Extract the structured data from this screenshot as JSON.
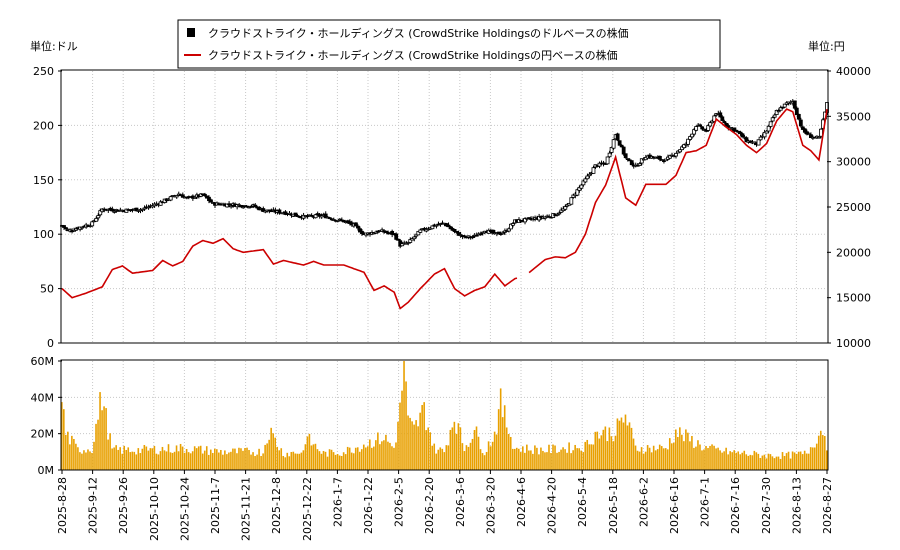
{
  "chart_data": {
    "type": "candlestick+line+volume",
    "legend": [
      {
        "label": "クラウドストライク・ホールディングス (CrowdStrike Holdingsのドルベースの株価",
        "color": "#000000",
        "marker": "square"
      },
      {
        "label": "クラウドストライク・ホールディングス (CrowdStrike Holdingsの円ベースの株価",
        "color": "#cc0000",
        "marker": "line"
      }
    ],
    "left_unit_label": "単位:ドル",
    "right_unit_label": "単位:円",
    "price_axis_left": {
      "ticks": [
        "250",
        "200",
        "150",
        "100",
        "50",
        "0"
      ],
      "range": [
        0,
        250
      ]
    },
    "price_axis_right": {
      "ticks": [
        "40000",
        "35000",
        "30000",
        "25000",
        "20000",
        "15000",
        "10000"
      ],
      "range": [
        10000,
        40000
      ]
    },
    "volume_axis": {
      "ticks": [
        "60M",
        "40M",
        "20M",
        "0M"
      ],
      "range": [
        0,
        60
      ]
    },
    "x_ticks": [
      "2025-8-28",
      "2025-9-12",
      "2025-9-26",
      "2025-10-10",
      "2025-10-24",
      "2025-11-7",
      "2025-11-21",
      "2025-12-8",
      "2025-12-22",
      "2026-1-7",
      "2026-1-22",
      "2026-2-5",
      "2026-2-20",
      "2026-3-6",
      "2026-3-20",
      "2026-4-6",
      "2026-4-20",
      "2026-5-4",
      "2026-5-18",
      "2026-6-2",
      "2026-6-16",
      "2026-7-1",
      "2026-7-16",
      "2026-7-30",
      "2026-8-13",
      "2026-8-27"
    ],
    "usd_close_anchors": [
      [
        0,
        108
      ],
      [
        3,
        103
      ],
      [
        10,
        107
      ],
      [
        15,
        110
      ],
      [
        20,
        123
      ],
      [
        30,
        122
      ],
      [
        40,
        123
      ],
      [
        50,
        130
      ],
      [
        58,
        137
      ],
      [
        62,
        133
      ],
      [
        70,
        136
      ],
      [
        75,
        128
      ],
      [
        85,
        127
      ],
      [
        95,
        126
      ],
      [
        100,
        122
      ],
      [
        110,
        120
      ],
      [
        120,
        116
      ],
      [
        130,
        117
      ],
      [
        135,
        114
      ],
      [
        140,
        112
      ],
      [
        145,
        108
      ],
      [
        150,
        100
      ],
      [
        158,
        103
      ],
      [
        165,
        100
      ],
      [
        168,
        90
      ],
      [
        172,
        92
      ],
      [
        178,
        103
      ],
      [
        185,
        108
      ],
      [
        190,
        110
      ],
      [
        195,
        102
      ],
      [
        200,
        97
      ],
      [
        205,
        98
      ],
      [
        210,
        104
      ],
      [
        215,
        100
      ],
      [
        220,
        102
      ],
      [
        225,
        112
      ],
      [
        230,
        113
      ],
      [
        240,
        116
      ],
      [
        245,
        118
      ],
      [
        250,
        124
      ],
      [
        255,
        138
      ],
      [
        260,
        150
      ],
      [
        265,
        163
      ],
      [
        270,
        165
      ],
      [
        275,
        192
      ],
      [
        280,
        170
      ],
      [
        285,
        162
      ],
      [
        290,
        172
      ],
      [
        300,
        168
      ],
      [
        305,
        175
      ],
      [
        310,
        183
      ],
      [
        315,
        200
      ],
      [
        320,
        195
      ],
      [
        325,
        212
      ],
      [
        330,
        200
      ],
      [
        335,
        195
      ],
      [
        340,
        186
      ],
      [
        345,
        183
      ],
      [
        350,
        195
      ],
      [
        355,
        213
      ],
      [
        360,
        220
      ],
      [
        363,
        222
      ],
      [
        368,
        195
      ],
      [
        372,
        190
      ],
      [
        376,
        188
      ],
      [
        380,
        220
      ]
    ],
    "jpy_close_anchors": [
      [
        0,
        16000
      ],
      [
        5,
        15000
      ],
      [
        12,
        15500
      ],
      [
        20,
        16200
      ],
      [
        25,
        18100
      ],
      [
        30,
        18500
      ],
      [
        35,
        17700
      ],
      [
        45,
        18000
      ],
      [
        50,
        19100
      ],
      [
        55,
        18500
      ],
      [
        60,
        19000
      ],
      [
        65,
        20700
      ],
      [
        70,
        21300
      ],
      [
        75,
        21000
      ],
      [
        80,
        21500
      ],
      [
        85,
        20400
      ],
      [
        90,
        20000
      ],
      [
        100,
        20300
      ],
      [
        105,
        18700
      ],
      [
        110,
        19100
      ],
      [
        120,
        18600
      ],
      [
        125,
        19000
      ],
      [
        130,
        18600
      ],
      [
        140,
        18600
      ],
      [
        150,
        17800
      ],
      [
        155,
        15800
      ],
      [
        160,
        16300
      ],
      [
        165,
        15600
      ],
      [
        168,
        13800
      ],
      [
        172,
        14500
      ],
      [
        178,
        16000
      ],
      [
        185,
        17600
      ],
      [
        190,
        18200
      ],
      [
        195,
        16000
      ],
      [
        200,
        15200
      ],
      [
        205,
        15800
      ],
      [
        210,
        16200
      ],
      [
        215,
        17600
      ],
      [
        220,
        16300
      ],
      [
        225,
        17100
      ],
      [
        230,
        17400
      ],
      [
        240,
        19200
      ],
      [
        245,
        19500
      ],
      [
        250,
        19400
      ],
      [
        255,
        20000
      ],
      [
        260,
        22000
      ],
      [
        265,
        25500
      ],
      [
        270,
        27400
      ],
      [
        275,
        30500
      ],
      [
        280,
        26000
      ],
      [
        285,
        25200
      ],
      [
        290,
        27500
      ],
      [
        300,
        27500
      ],
      [
        305,
        28500
      ],
      [
        310,
        31000
      ],
      [
        315,
        31200
      ],
      [
        320,
        31800
      ],
      [
        325,
        34700
      ],
      [
        330,
        33800
      ],
      [
        335,
        33000
      ],
      [
        340,
        31800
      ],
      [
        345,
        31000
      ],
      [
        350,
        32000
      ],
      [
        355,
        34500
      ],
      [
        360,
        35800
      ],
      [
        363,
        35500
      ],
      [
        368,
        31800
      ],
      [
        372,
        31200
      ],
      [
        376,
        30200
      ],
      [
        380,
        35800
      ]
    ],
    "jpy_gaps": [
      [
        226,
        232
      ]
    ],
    "volume_anchors_M": [
      [
        0,
        40
      ],
      [
        2,
        20
      ],
      [
        8,
        11
      ],
      [
        15,
        12
      ],
      [
        20,
        41
      ],
      [
        22,
        28
      ],
      [
        25,
        11
      ],
      [
        40,
        11
      ],
      [
        60,
        12
      ],
      [
        80,
        10
      ],
      [
        100,
        10
      ],
      [
        103,
        22
      ],
      [
        110,
        9
      ],
      [
        120,
        10
      ],
      [
        121,
        18
      ],
      [
        130,
        9
      ],
      [
        140,
        10
      ],
      [
        160,
        18
      ],
      [
        165,
        12
      ],
      [
        168,
        32
      ],
      [
        170,
        60
      ],
      [
        172,
        26
      ],
      [
        175,
        22
      ],
      [
        180,
        33
      ],
      [
        185,
        12
      ],
      [
        190,
        10
      ],
      [
        195,
        30
      ],
      [
        200,
        12
      ],
      [
        205,
        22
      ],
      [
        210,
        10
      ],
      [
        215,
        20
      ],
      [
        218,
        36
      ],
      [
        225,
        12
      ],
      [
        240,
        11
      ],
      [
        260,
        13
      ],
      [
        265,
        20
      ],
      [
        275,
        21
      ],
      [
        280,
        30
      ],
      [
        285,
        12
      ],
      [
        300,
        12
      ],
      [
        305,
        21
      ],
      [
        310,
        18
      ],
      [
        320,
        12
      ],
      [
        330,
        10
      ],
      [
        340,
        9
      ],
      [
        350,
        8
      ],
      [
        360,
        8
      ],
      [
        370,
        9
      ],
      [
        378,
        23
      ],
      [
        380,
        14
      ]
    ],
    "sessions": 381
  }
}
